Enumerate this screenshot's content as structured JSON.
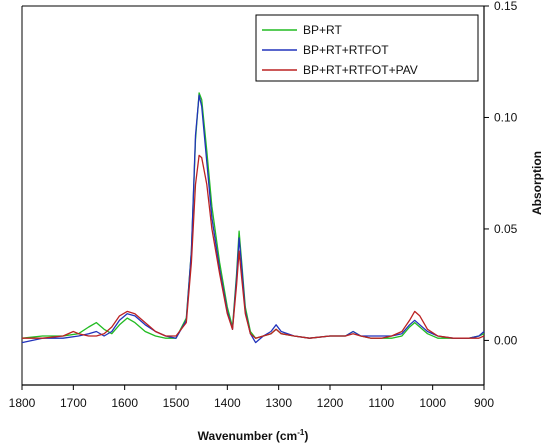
{
  "chart_data": {
    "type": "line",
    "title": "",
    "xlabel_main": "Wavenumber (cm",
    "xlabel_sup": "-1",
    "xlabel_tail": ")",
    "ylabel": "Absorption",
    "xlim": [
      1800,
      900
    ],
    "ylim": [
      -0.02,
      0.15
    ],
    "x_ticks": [
      1800,
      1700,
      1600,
      1500,
      1400,
      1300,
      1200,
      1100,
      1000,
      900
    ],
    "y_ticks": [
      "0.00",
      "0.05",
      "0.10",
      "0.15"
    ],
    "y_tick_values": [
      0,
      0.05,
      0.1,
      0.15
    ],
    "y_axis_side": "right",
    "grid": false,
    "legend_position": "top-right",
    "series": [
      {
        "name": "BP+RT",
        "color": "#22bb22",
        "points": [
          [
            1800,
            0.001
          ],
          [
            1760,
            0.002
          ],
          [
            1720,
            0.002
          ],
          [
            1690,
            0.003
          ],
          [
            1670,
            0.006
          ],
          [
            1655,
            0.008
          ],
          [
            1640,
            0.005
          ],
          [
            1625,
            0.003
          ],
          [
            1610,
            0.007
          ],
          [
            1595,
            0.01
          ],
          [
            1580,
            0.008
          ],
          [
            1560,
            0.004
          ],
          [
            1540,
            0.002
          ],
          [
            1520,
            0.001
          ],
          [
            1500,
            0.001
          ],
          [
            1480,
            0.01
          ],
          [
            1470,
            0.04
          ],
          [
            1462,
            0.09
          ],
          [
            1455,
            0.111
          ],
          [
            1450,
            0.108
          ],
          [
            1440,
            0.085
          ],
          [
            1430,
            0.06
          ],
          [
            1415,
            0.035
          ],
          [
            1400,
            0.015
          ],
          [
            1390,
            0.006
          ],
          [
            1382,
            0.03
          ],
          [
            1377,
            0.049
          ],
          [
            1372,
            0.035
          ],
          [
            1365,
            0.015
          ],
          [
            1355,
            0.004
          ],
          [
            1345,
            0.001
          ],
          [
            1330,
            0.002
          ],
          [
            1315,
            0.003
          ],
          [
            1305,
            0.005
          ],
          [
            1295,
            0.003
          ],
          [
            1270,
            0.002
          ],
          [
            1240,
            0.001
          ],
          [
            1200,
            0.002
          ],
          [
            1170,
            0.002
          ],
          [
            1155,
            0.004
          ],
          [
            1140,
            0.002
          ],
          [
            1120,
            0.001
          ],
          [
            1100,
            0.001
          ],
          [
            1080,
            0.001
          ],
          [
            1060,
            0.002
          ],
          [
            1045,
            0.006
          ],
          [
            1035,
            0.008
          ],
          [
            1025,
            0.006
          ],
          [
            1010,
            0.003
          ],
          [
            990,
            0.001
          ],
          [
            960,
            0.001
          ],
          [
            930,
            0.001
          ],
          [
            910,
            0.002
          ],
          [
            900,
            0.003
          ]
        ]
      },
      {
        "name": "BP+RT+RTFOT",
        "color": "#2233bb",
        "points": [
          [
            1800,
            -0.001
          ],
          [
            1760,
            0.001
          ],
          [
            1720,
            0.001
          ],
          [
            1690,
            0.002
          ],
          [
            1670,
            0.003
          ],
          [
            1655,
            0.004
          ],
          [
            1640,
            0.002
          ],
          [
            1625,
            0.004
          ],
          [
            1610,
            0.009
          ],
          [
            1595,
            0.012
          ],
          [
            1580,
            0.011
          ],
          [
            1560,
            0.007
          ],
          [
            1540,
            0.004
          ],
          [
            1520,
            0.002
          ],
          [
            1500,
            0.001
          ],
          [
            1480,
            0.009
          ],
          [
            1470,
            0.04
          ],
          [
            1462,
            0.092
          ],
          [
            1455,
            0.11
          ],
          [
            1450,
            0.105
          ],
          [
            1440,
            0.08
          ],
          [
            1430,
            0.055
          ],
          [
            1415,
            0.032
          ],
          [
            1400,
            0.013
          ],
          [
            1390,
            0.005
          ],
          [
            1382,
            0.028
          ],
          [
            1377,
            0.046
          ],
          [
            1372,
            0.033
          ],
          [
            1365,
            0.013
          ],
          [
            1355,
            0.003
          ],
          [
            1345,
            -0.001
          ],
          [
            1330,
            0.002
          ],
          [
            1315,
            0.004
          ],
          [
            1305,
            0.007
          ],
          [
            1295,
            0.004
          ],
          [
            1270,
            0.002
          ],
          [
            1240,
            0.001
          ],
          [
            1200,
            0.002
          ],
          [
            1170,
            0.002
          ],
          [
            1155,
            0.004
          ],
          [
            1140,
            0.002
          ],
          [
            1120,
            0.002
          ],
          [
            1100,
            0.002
          ],
          [
            1080,
            0.002
          ],
          [
            1060,
            0.003
          ],
          [
            1045,
            0.007
          ],
          [
            1035,
            0.009
          ],
          [
            1025,
            0.007
          ],
          [
            1010,
            0.004
          ],
          [
            990,
            0.002
          ],
          [
            960,
            0.001
          ],
          [
            930,
            0.001
          ],
          [
            910,
            0.002
          ],
          [
            900,
            0.004
          ]
        ]
      },
      {
        "name": "BP+RT+RTFOT+PAV",
        "color": "#bb2222",
        "points": [
          [
            1800,
            0.001
          ],
          [
            1760,
            0.001
          ],
          [
            1720,
            0.002
          ],
          [
            1700,
            0.004
          ],
          [
            1690,
            0.003
          ],
          [
            1670,
            0.002
          ],
          [
            1655,
            0.002
          ],
          [
            1640,
            0.003
          ],
          [
            1625,
            0.006
          ],
          [
            1610,
            0.011
          ],
          [
            1595,
            0.013
          ],
          [
            1580,
            0.012
          ],
          [
            1560,
            0.008
          ],
          [
            1540,
            0.004
          ],
          [
            1520,
            0.002
          ],
          [
            1500,
            0.002
          ],
          [
            1480,
            0.008
          ],
          [
            1470,
            0.035
          ],
          [
            1462,
            0.07
          ],
          [
            1455,
            0.083
          ],
          [
            1450,
            0.082
          ],
          [
            1440,
            0.07
          ],
          [
            1430,
            0.05
          ],
          [
            1415,
            0.03
          ],
          [
            1400,
            0.012
          ],
          [
            1390,
            0.005
          ],
          [
            1382,
            0.025
          ],
          [
            1377,
            0.04
          ],
          [
            1372,
            0.028
          ],
          [
            1365,
            0.012
          ],
          [
            1355,
            0.003
          ],
          [
            1345,
            0.001
          ],
          [
            1330,
            0.002
          ],
          [
            1315,
            0.003
          ],
          [
            1305,
            0.005
          ],
          [
            1295,
            0.003
          ],
          [
            1270,
            0.002
          ],
          [
            1240,
            0.001
          ],
          [
            1200,
            0.002
          ],
          [
            1170,
            0.002
          ],
          [
            1155,
            0.003
          ],
          [
            1140,
            0.002
          ],
          [
            1120,
            0.001
          ],
          [
            1100,
            0.001
          ],
          [
            1080,
            0.002
          ],
          [
            1060,
            0.004
          ],
          [
            1045,
            0.009
          ],
          [
            1035,
            0.013
          ],
          [
            1025,
            0.011
          ],
          [
            1010,
            0.005
          ],
          [
            990,
            0.002
          ],
          [
            960,
            0.001
          ],
          [
            930,
            0.001
          ],
          [
            910,
            0.001
          ],
          [
            900,
            0.002
          ]
        ]
      }
    ]
  }
}
